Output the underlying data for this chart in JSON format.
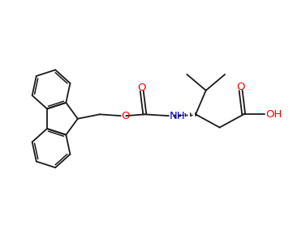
{
  "figsize": [
    3.61,
    3.09
  ],
  "dpi": 100,
  "background_color": "#ffffff",
  "bond_color": "#1a1a1a",
  "bond_lw": 1.3,
  "o_color": "#ff0000",
  "n_color": "#0000cc",
  "c_color": "#1a1a1a",
  "font_size": 9.5,
  "xlim": [
    0,
    10
  ],
  "ylim": [
    0,
    8.57
  ]
}
